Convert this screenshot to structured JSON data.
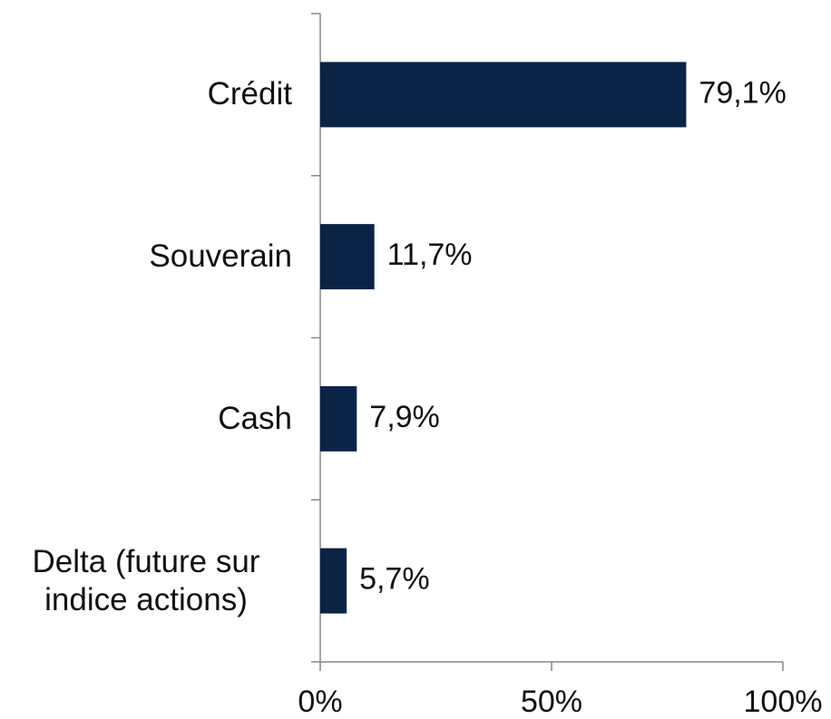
{
  "chart_data": {
    "type": "bar",
    "orientation": "horizontal",
    "categories": [
      "Crédit",
      "Souverain",
      "Cash",
      "Delta (future sur indice actions)"
    ],
    "values": [
      79.1,
      11.7,
      7.9,
      5.7
    ],
    "value_labels": [
      "79,1%",
      "11,7%",
      "7,9%",
      "5,7%"
    ],
    "color": "#0b2446",
    "xlim": [
      0,
      100
    ],
    "xticks": [
      {
        "value": 0,
        "label": "0%"
      },
      {
        "value": 50,
        "label": "50%"
      },
      {
        "value": 100,
        "label": "100%"
      }
    ]
  }
}
